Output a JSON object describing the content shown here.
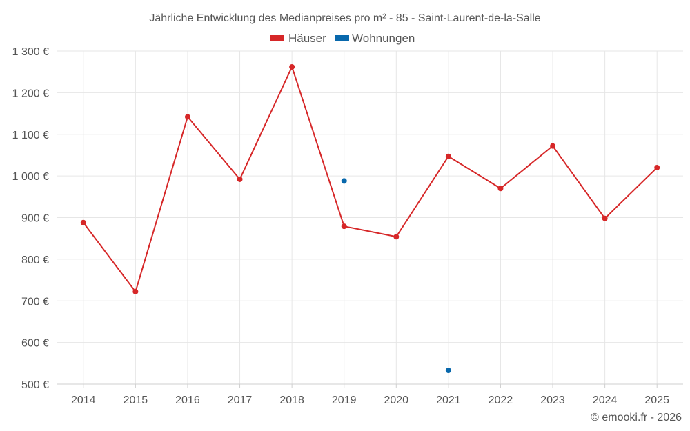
{
  "chart_data": {
    "type": "line",
    "title": "Jährliche Entwicklung des Medianpreises pro m² - 85 - Saint-Laurent-de-la-Salle",
    "categories": [
      "2014",
      "2015",
      "2016",
      "2017",
      "2018",
      "2019",
      "2020",
      "2021",
      "2022",
      "2023",
      "2024",
      "2025"
    ],
    "ylim": [
      500,
      1300
    ],
    "yticks": [
      500,
      600,
      700,
      800,
      900,
      1000,
      1100,
      1200,
      1300
    ],
    "ytick_labels": [
      "500 €",
      "600 €",
      "700 €",
      "800 €",
      "900 €",
      "1 000 €",
      "1 100 €",
      "1 200 €",
      "1 300 €"
    ],
    "grid": true,
    "legend": "top",
    "series": [
      {
        "name": "Häuser",
        "color": "#d62728",
        "values": [
          888,
          722,
          1142,
          992,
          1262,
          879,
          854,
          1047,
          970,
          1072,
          898,
          1020
        ]
      },
      {
        "name": "Wohnungen",
        "color": "#0868ac",
        "values": [
          null,
          null,
          null,
          null,
          null,
          988,
          null,
          533,
          null,
          null,
          null,
          null
        ]
      }
    ]
  },
  "footer": "© emooki.fr - 2026"
}
